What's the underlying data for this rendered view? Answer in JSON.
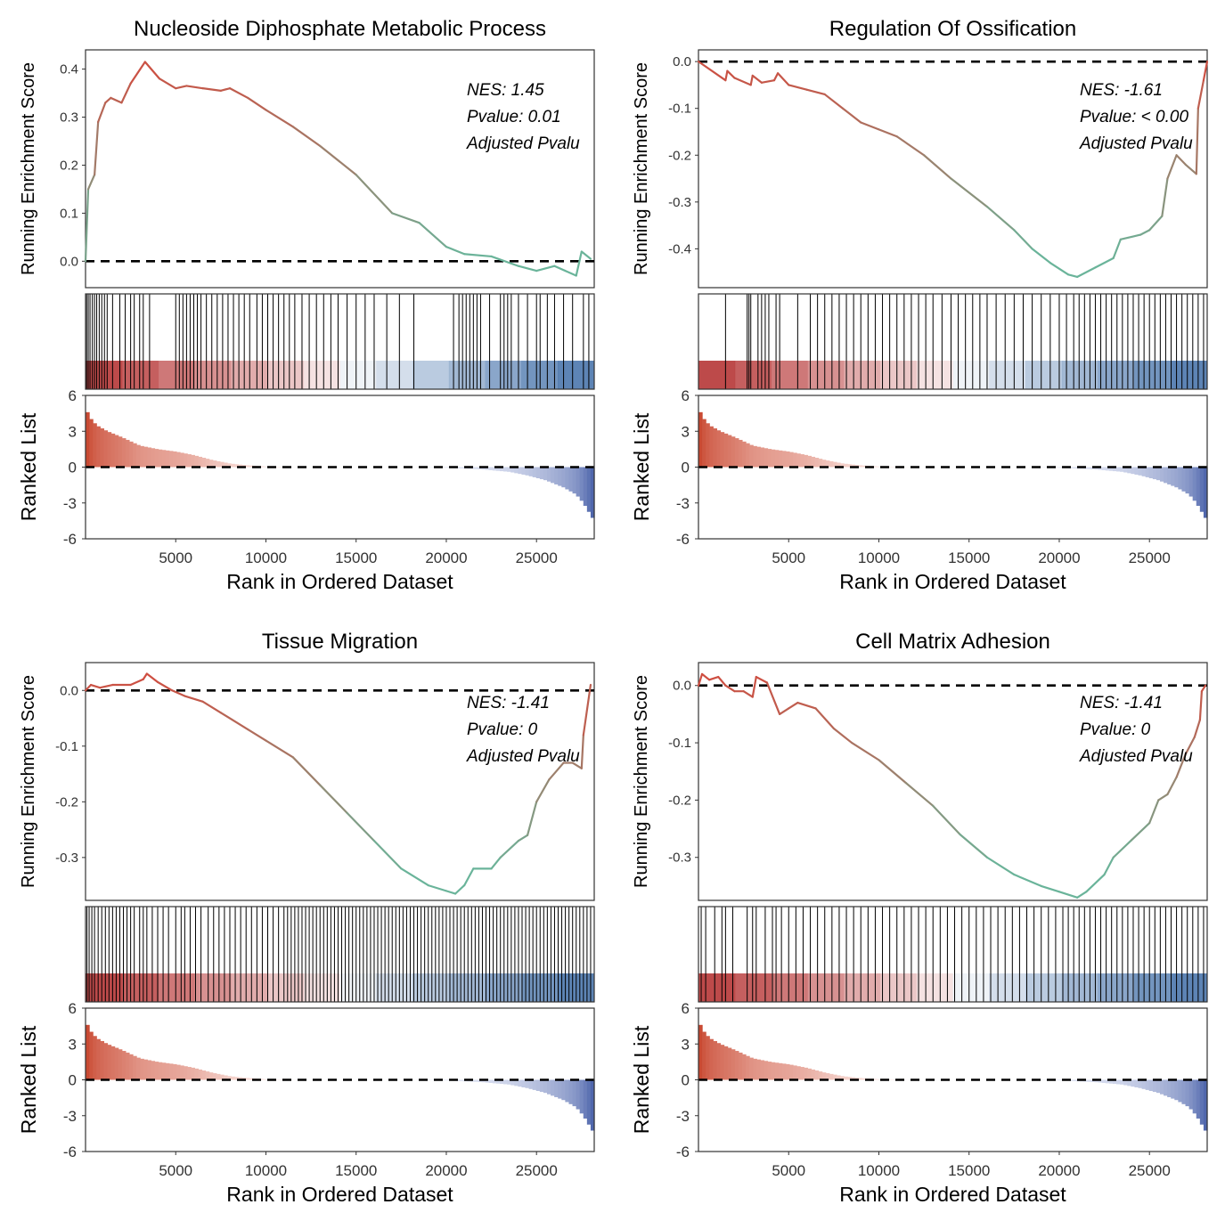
{
  "chart_data": [
    {
      "type": "line",
      "title": "Nucleoside Diphosphate Metabolic Process",
      "ylabel": "Running Enrichment Score",
      "ylim": [
        -0.055,
        0.44
      ],
      "yticks": [
        0.0,
        0.1,
        0.2,
        0.3,
        0.4
      ],
      "ytick_labels": [
        "0.0",
        "0.1",
        "0.2",
        "0.3",
        "0.4"
      ],
      "annotation": [
        "NES: 1.45",
        "Pvalue: 0.01",
        "Adjusted Pvalu"
      ],
      "curve": [
        [
          0,
          0
        ],
        [
          150,
          0.15
        ],
        [
          500,
          0.18
        ],
        [
          700,
          0.29
        ],
        [
          1100,
          0.33
        ],
        [
          1400,
          0.34
        ],
        [
          2000,
          0.33
        ],
        [
          2500,
          0.37
        ],
        [
          3300,
          0.415
        ],
        [
          4100,
          0.38
        ],
        [
          5000,
          0.36
        ],
        [
          5600,
          0.365
        ],
        [
          6500,
          0.36
        ],
        [
          7500,
          0.355
        ],
        [
          8000,
          0.36
        ],
        [
          9000,
          0.34
        ],
        [
          10000,
          0.315
        ],
        [
          11500,
          0.28
        ],
        [
          13000,
          0.24
        ],
        [
          15000,
          0.18
        ],
        [
          17000,
          0.1
        ],
        [
          18500,
          0.08
        ],
        [
          20000,
          0.03
        ],
        [
          21000,
          0.015
        ],
        [
          22500,
          0.01
        ],
        [
          24000,
          -0.01
        ],
        [
          25000,
          -0.02
        ],
        [
          26000,
          -0.01
        ],
        [
          27200,
          -0.03
        ],
        [
          27500,
          0.02
        ],
        [
          28000,
          0.005
        ]
      ],
      "hits": [
        60,
        150,
        250,
        380,
        500,
        620,
        760,
        900,
        1050,
        1200,
        1500,
        1900,
        2200,
        2500,
        2700,
        3000,
        3200,
        3550,
        5000,
        5200,
        5400,
        5600,
        5800,
        6000,
        6200,
        6400,
        6700,
        7000,
        7300,
        7600,
        7900,
        8200,
        8500,
        8800,
        9100,
        9500,
        9800,
        10100,
        10400,
        10700,
        11000,
        11300,
        11600,
        12000,
        12400,
        12800,
        13200,
        13600,
        14000,
        14500,
        15000,
        15500,
        16000,
        16700,
        17400,
        18200,
        20400,
        20700,
        20900,
        21100,
        21300,
        21500,
        21700,
        21900,
        22400,
        23000,
        23200,
        23400,
        23600,
        24000,
        24500,
        25000,
        25200,
        25600,
        26000,
        26500,
        27000,
        27600,
        27900
      ]
    },
    {
      "type": "line",
      "title": "Regulation Of Ossification",
      "ylabel": "Running Enrichment Score",
      "ylim": [
        -0.483,
        0.025
      ],
      "yticks": [
        0.0,
        -0.1,
        -0.2,
        -0.3,
        -0.4
      ],
      "ytick_labels": [
        "0.0",
        "-0.1",
        "-0.2",
        "-0.3",
        "-0.4"
      ],
      "annotation": [
        "NES: -1.61",
        "Pvalue: < 0.00",
        "Adjusted Pvalu"
      ],
      "curve": [
        [
          0,
          0
        ],
        [
          1500,
          -0.04
        ],
        [
          1600,
          -0.02
        ],
        [
          2000,
          -0.035
        ],
        [
          2900,
          -0.05
        ],
        [
          3000,
          -0.03
        ],
        [
          3500,
          -0.045
        ],
        [
          4200,
          -0.04
        ],
        [
          4400,
          -0.025
        ],
        [
          5000,
          -0.05
        ],
        [
          6000,
          -0.06
        ],
        [
          7000,
          -0.07
        ],
        [
          8000,
          -0.1
        ],
        [
          9000,
          -0.13
        ],
        [
          10000,
          -0.145
        ],
        [
          11000,
          -0.16
        ],
        [
          12500,
          -0.2
        ],
        [
          14000,
          -0.25
        ],
        [
          16000,
          -0.31
        ],
        [
          17500,
          -0.36
        ],
        [
          18500,
          -0.4
        ],
        [
          19500,
          -0.43
        ],
        [
          20500,
          -0.455
        ],
        [
          21000,
          -0.46
        ],
        [
          22000,
          -0.44
        ],
        [
          23000,
          -0.42
        ],
        [
          23400,
          -0.38
        ],
        [
          24500,
          -0.37
        ],
        [
          25000,
          -0.36
        ],
        [
          25700,
          -0.33
        ],
        [
          26000,
          -0.25
        ],
        [
          26500,
          -0.2
        ],
        [
          27000,
          -0.22
        ],
        [
          27600,
          -0.24
        ],
        [
          27700,
          -0.1
        ],
        [
          28000,
          -0.04
        ],
        [
          28200,
          0
        ]
      ],
      "hits": [
        1500,
        2700,
        2800,
        2900,
        3300,
        3500,
        3700,
        3900,
        4300,
        4500,
        5500,
        6200,
        6600,
        7000,
        7400,
        7800,
        8200,
        8600,
        9000,
        9400,
        9800,
        10200,
        10600,
        11000,
        11400,
        11800,
        12200,
        12600,
        13000,
        13500,
        14000,
        14400,
        14800,
        15200,
        15600,
        16000,
        16500,
        17000,
        17500,
        18000,
        18500,
        19000,
        19500,
        20000,
        20400,
        20800,
        21100,
        21400,
        21700,
        22000,
        22300,
        22600,
        22900,
        23200,
        23500,
        23800,
        24100,
        24400,
        24700,
        25000,
        25300,
        25600,
        25900,
        26200,
        26500,
        26800,
        27100,
        27400,
        27700,
        28000
      ]
    },
    {
      "type": "line",
      "title": "Tissue Migration",
      "ylabel": "Running Enrichment Score",
      "ylim": [
        -0.377,
        0.05
      ],
      "yticks": [
        0.0,
        -0.1,
        -0.2,
        -0.3
      ],
      "ytick_labels": [
        "0.0",
        "-0.1",
        "-0.2",
        "-0.3"
      ],
      "annotation": [
        "NES: -1.41",
        "Pvalue: 0",
        "Adjusted Pvalu"
      ],
      "curve": [
        [
          0,
          0
        ],
        [
          300,
          0.01
        ],
        [
          800,
          0.005
        ],
        [
          1500,
          0.01
        ],
        [
          2500,
          0.01
        ],
        [
          3200,
          0.02
        ],
        [
          3400,
          0.03
        ],
        [
          4000,
          0.015
        ],
        [
          4800,
          0.0
        ],
        [
          5500,
          -0.01
        ],
        [
          6500,
          -0.02
        ],
        [
          7500,
          -0.04
        ],
        [
          9000,
          -0.07
        ],
        [
          10000,
          -0.09
        ],
        [
          11500,
          -0.12
        ],
        [
          13000,
          -0.17
        ],
        [
          14500,
          -0.22
        ],
        [
          16000,
          -0.27
        ],
        [
          17500,
          -0.32
        ],
        [
          19000,
          -0.35
        ],
        [
          20000,
          -0.36
        ],
        [
          20500,
          -0.365
        ],
        [
          21000,
          -0.35
        ],
        [
          21500,
          -0.32
        ],
        [
          22500,
          -0.32
        ],
        [
          23000,
          -0.3
        ],
        [
          24000,
          -0.27
        ],
        [
          24500,
          -0.26
        ],
        [
          25000,
          -0.2
        ],
        [
          25700,
          -0.16
        ],
        [
          26500,
          -0.13
        ],
        [
          27000,
          -0.13
        ],
        [
          27500,
          -0.14
        ],
        [
          27600,
          -0.08
        ],
        [
          28000,
          0.01
        ]
      ],
      "hits": [
        80,
        200,
        350,
        500,
        700,
        900,
        1100,
        1300,
        1500,
        1700,
        1900,
        2100,
        2300,
        2500,
        2700,
        3000,
        3200,
        3400,
        3700,
        4000,
        4300,
        4600,
        5000,
        5300,
        5500,
        5800,
        6100,
        6400,
        6800,
        7100,
        7400,
        7700,
        8000,
        8300,
        8600,
        8900,
        9200,
        9500,
        9800,
        10100,
        10400,
        10700,
        11000,
        11200,
        11400,
        11600,
        11800,
        12000,
        12200,
        12400,
        12600,
        12800,
        13000,
        13200,
        13400,
        13600,
        13800,
        14000,
        14200,
        14400,
        14600,
        14800,
        15000,
        15200,
        15400,
        15600,
        15800,
        16000,
        16200,
        16400,
        16600,
        16800,
        17000,
        17200,
        17400,
        17600,
        17800,
        18000,
        18200,
        18400,
        18600,
        18800,
        19000,
        19200,
        19400,
        19600,
        19800,
        20000,
        20200,
        20400,
        20600,
        20800,
        21000,
        21200,
        21400,
        21600,
        21800,
        22000,
        22200,
        22400,
        22600,
        22800,
        23000,
        23200,
        23400,
        23600,
        23800,
        24000,
        24200,
        24400,
        24600,
        24800,
        25000,
        25200,
        25400,
        25600,
        25800,
        26000,
        26200,
        26400,
        26600,
        26800,
        27000,
        27200,
        27400,
        27600,
        27800,
        28000
      ]
    },
    {
      "type": "line",
      "title": "Cell Matrix Adhesion",
      "ylabel": "Running Enrichment Score",
      "ylim": [
        -0.375,
        0.04
      ],
      "yticks": [
        0.0,
        -0.1,
        -0.2,
        -0.3
      ],
      "ytick_labels": [
        "0.0",
        "-0.1",
        "-0.2",
        "-0.3"
      ],
      "annotation": [
        "NES: -1.41",
        "Pvalue: 0",
        "Adjusted Pvalu"
      ],
      "curve": [
        [
          0,
          0
        ],
        [
          200,
          0.02
        ],
        [
          600,
          0.01
        ],
        [
          1100,
          0.015
        ],
        [
          1500,
          0.0
        ],
        [
          2000,
          -0.01
        ],
        [
          2500,
          -0.01
        ],
        [
          3000,
          -0.02
        ],
        [
          3200,
          0.015
        ],
        [
          3800,
          0.005
        ],
        [
          4500,
          -0.05
        ],
        [
          5000,
          -0.04
        ],
        [
          5500,
          -0.03
        ],
        [
          6500,
          -0.04
        ],
        [
          7500,
          -0.075
        ],
        [
          8500,
          -0.1
        ],
        [
          10000,
          -0.13
        ],
        [
          11500,
          -0.17
        ],
        [
          13000,
          -0.21
        ],
        [
          14500,
          -0.26
        ],
        [
          16000,
          -0.3
        ],
        [
          17500,
          -0.33
        ],
        [
          19000,
          -0.35
        ],
        [
          20000,
          -0.36
        ],
        [
          21000,
          -0.37
        ],
        [
          21500,
          -0.36
        ],
        [
          22500,
          -0.33
        ],
        [
          23000,
          -0.3
        ],
        [
          24000,
          -0.27
        ],
        [
          25000,
          -0.24
        ],
        [
          25500,
          -0.2
        ],
        [
          26000,
          -0.19
        ],
        [
          26500,
          -0.16
        ],
        [
          27000,
          -0.12
        ],
        [
          27500,
          -0.09
        ],
        [
          27800,
          -0.06
        ],
        [
          27900,
          -0.01
        ],
        [
          28100,
          0
        ]
      ],
      "hits": [
        150,
        400,
        900,
        1300,
        1500,
        1900,
        2700,
        3000,
        3200,
        3700,
        4100,
        4300,
        4600,
        5000,
        5400,
        5800,
        6200,
        6600,
        7000,
        7400,
        7800,
        8200,
        8600,
        9000,
        9400,
        9800,
        10200,
        10600,
        11000,
        11400,
        11800,
        12200,
        12600,
        13000,
        13400,
        13800,
        14200,
        14600,
        15000,
        15400,
        15800,
        16200,
        16600,
        17000,
        17400,
        17800,
        18200,
        18600,
        19000,
        19400,
        19800,
        20200,
        20500,
        20800,
        21100,
        21400,
        21700,
        22000,
        22300,
        22600,
        22900,
        23200,
        23500,
        23800,
        24100,
        24400,
        24700,
        25000,
        25300,
        25600,
        25900,
        26200,
        26500,
        26800,
        27100,
        27400,
        27700,
        28000
      ]
    }
  ],
  "shared": {
    "ranked_list_ylabel": "Ranked List",
    "ranked_list_ylim": [
      -6,
      6
    ],
    "ranked_list_yticks": [
      "6",
      "3",
      "0",
      "-3",
      "-6"
    ],
    "xlabel": "Rank in Ordered Dataset",
    "xlim": [
      0,
      28200
    ],
    "xticks": [
      "5000",
      "10000",
      "15000",
      "20000",
      "25000"
    ],
    "ranked_metric_profile": [
      [
        0,
        5.0
      ],
      [
        200,
        4.2
      ],
      [
        600,
        3.5
      ],
      [
        1200,
        3.0
      ],
      [
        2000,
        2.5
      ],
      [
        3000,
        1.8
      ],
      [
        4000,
        1.5
      ],
      [
        5000,
        1.3
      ],
      [
        6000,
        1.0
      ],
      [
        7000,
        0.6
      ],
      [
        8000,
        0.3
      ],
      [
        9000,
        0.15
      ],
      [
        10000,
        0.05
      ],
      [
        12000,
        0.0
      ],
      [
        18000,
        0.0
      ],
      [
        20000,
        -0.05
      ],
      [
        22000,
        -0.2
      ],
      [
        23500,
        -0.4
      ],
      [
        24500,
        -0.7
      ],
      [
        25500,
        -1.1
      ],
      [
        26500,
        -1.7
      ],
      [
        27200,
        -2.3
      ],
      [
        27600,
        -3.0
      ],
      [
        28000,
        -4.0
      ],
      [
        28200,
        -4.5
      ]
    ],
    "colors": {
      "curve_start": "#d6463a",
      "curve_end": "#6ab49a",
      "positive_bar": "#b22a2a",
      "negative_bar": "#1f5599",
      "metric_positive": "#c94a33",
      "metric_negative": "#4a62aa"
    }
  }
}
